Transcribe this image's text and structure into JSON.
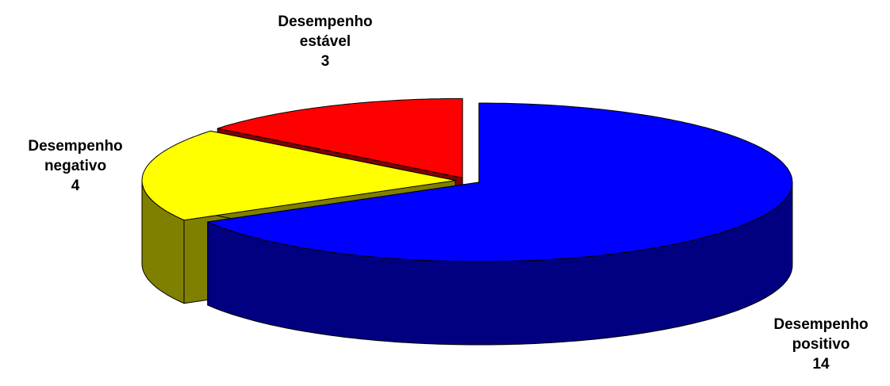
{
  "chart_data": {
    "type": "pie",
    "three_d": true,
    "categories": [
      "Desempenho positivo",
      "Desempenho negativo",
      "Desempenho estável"
    ],
    "values": [
      14,
      4,
      3
    ],
    "colors": [
      "#0000ff",
      "#ffff00",
      "#ff0000"
    ],
    "side_colors": [
      "#000080",
      "#808000",
      "#800000"
    ]
  }
}
